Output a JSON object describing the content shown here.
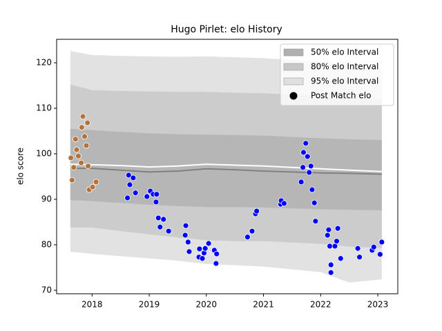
{
  "chart_data": {
    "type": "scatter",
    "title": "Hugo Pirlet: elo History",
    "y_label": "elo score",
    "xlim": [
      2017.38,
      2023.35
    ],
    "ylim": [
      69.24,
      125.15
    ],
    "xticks": [
      2018,
      2019,
      2020,
      2021,
      2022,
      2023
    ],
    "yticks": [
      70,
      80,
      90,
      100,
      110,
      120
    ],
    "legend": "upper right",
    "band_x": [
      2017.62,
      2018.0,
      2018.5,
      2019.0,
      2019.5,
      2020.0,
      2020.5,
      2021.0,
      2021.5,
      2022.0,
      2022.5,
      2023.07
    ],
    "bands": [
      {
        "name": "95% elo Interval",
        "color": "#e2e2e2",
        "legend_color": "#e0e0e0",
        "upper": [
          122.6,
          121.7,
          121.5,
          121.4,
          121.3,
          121.4,
          121.2,
          121.0,
          120.6,
          120.2,
          119.5,
          119.0
        ],
        "lower": [
          78.5,
          78.0,
          77.5,
          77.0,
          76.5,
          75.8,
          75.5,
          75.2,
          74.6,
          74.0,
          71.7,
          72.4
        ]
      },
      {
        "name": "80% elo Interval",
        "color": "#cccccc",
        "legend_color": "#c8c8c8",
        "upper": [
          115.2,
          114.0,
          113.8,
          113.7,
          113.6,
          113.6,
          113.4,
          113.3,
          113.0,
          112.7,
          112.3,
          112.0
        ],
        "lower": [
          83.8,
          83.8,
          83.0,
          82.3,
          81.6,
          81.0,
          80.8,
          80.8,
          80.5,
          80.2,
          79.6,
          79.3
        ]
      },
      {
        "name": "50% elo Interval",
        "color": "#b6b6b6",
        "legend_color": "#b0b0b0",
        "upper": [
          105.5,
          105.2,
          104.8,
          104.5,
          104.3,
          104.2,
          104.1,
          104.0,
          103.7,
          103.4,
          103.2,
          103.0
        ],
        "lower": [
          89.8,
          89.6,
          89.2,
          88.8,
          88.5,
          88.3,
          88.3,
          88.2,
          88.0,
          87.8,
          87.7,
          87.6
        ]
      }
    ],
    "lines": [
      {
        "color": "#808080",
        "values": [
          96.8,
          96.8,
          96.4,
          96.0,
          96.2,
          96.7,
          96.5,
          96.2,
          96.0,
          95.8,
          95.7,
          95.5
        ]
      },
      {
        "color": "#ffffff",
        "values": [
          97.7,
          97.6,
          97.4,
          97.1,
          97.3,
          97.7,
          97.5,
          97.3,
          97.0,
          96.7,
          96.4,
          96.1
        ]
      }
    ],
    "series": [
      {
        "name": "Post Match elo",
        "color": "#000000",
        "x": [
          2017.63,
          2017.65,
          2017.68,
          2017.71,
          2017.73,
          2017.76,
          2017.81,
          2017.82,
          2017.84,
          2017.87,
          2017.9,
          2017.92,
          2017.93,
          2017.95,
          2018.01,
          2018.07,
          2018.64,
          2018.66,
          2018.62,
          2018.72,
          2018.76,
          2018.96,
          2019.02,
          2019.07,
          2019.13,
          2019.12,
          2019.16,
          2019.19,
          2019.25,
          2019.34,
          2019.64,
          2019.63,
          2019.68,
          2019.7,
          2019.88,
          2019.87,
          2019.93,
          2019.96,
          2019.98,
          2020.04,
          2020.14,
          2020.18,
          2020.17,
          2020.72,
          2020.8,
          2020.86,
          2020.88,
          2021.3,
          2021.31,
          2021.36,
          2021.66,
          2021.69,
          2021.7,
          2021.74,
          2021.77,
          2021.8,
          2021.83,
          2021.85,
          2021.89,
          2021.91,
          2022.12,
          2022.14,
          2022.16,
          2022.18,
          2022.18,
          2022.25,
          2022.28,
          2022.3,
          2022.35,
          2022.65,
          2022.68,
          2022.9,
          2022.93,
          2023.04,
          2023.07
        ],
        "values": [
          99.1,
          94.2,
          97.0,
          103.2,
          100.9,
          99.5,
          98.0,
          105.8,
          108.2,
          103.8,
          101.8,
          106.8,
          97.3,
          92.1,
          92.7,
          93.8,
          95.3,
          93.2,
          90.3,
          94.7,
          91.4,
          90.6,
          91.8,
          91.1,
          91.1,
          89.4,
          85.9,
          83.9,
          85.6,
          83.0,
          84.2,
          82.1,
          80.6,
          78.5,
          79.1,
          77.3,
          77.0,
          78.2,
          79.2,
          80.3,
          78.8,
          78.0,
          75.9,
          81.7,
          83.0,
          86.8,
          87.4,
          88.9,
          89.7,
          89.1,
          93.8,
          97.0,
          100.3,
          102.3,
          99.4,
          95.9,
          97.3,
          92.1,
          89.2,
          85.2,
          82.1,
          83.3,
          79.7,
          75.6,
          73.9,
          79.7,
          80.8,
          83.6,
          77.0,
          79.2,
          77.3,
          78.8,
          79.5,
          77.9,
          80.6
        ],
        "colors": [
          "#b5733c",
          "#b5733c",
          "#b5733c",
          "#b5733c",
          "#b5733c",
          "#b5733c",
          "#b5733c",
          "#b5733c",
          "#b5733c",
          "#b5733c",
          "#b5733c",
          "#b5733c",
          "#b5733c",
          "#b5733c",
          "#b5733c",
          "#b5733c",
          "#0000ff",
          "#0000ff",
          "#0000ff",
          "#0000ff",
          "#0000ff",
          "#0000ff",
          "#0000ff",
          "#0000ff",
          "#0000ff",
          "#0000ff",
          "#0000ff",
          "#0000ff",
          "#0000ff",
          "#0000ff",
          "#0000ff",
          "#0000ff",
          "#0000ff",
          "#0000ff",
          "#0000ff",
          "#0000ff",
          "#0000ff",
          "#0000ff",
          "#0000ff",
          "#0000ff",
          "#0000ff",
          "#0000ff",
          "#0000ff",
          "#0000ff",
          "#0000ff",
          "#0000ff",
          "#0000ff",
          "#0000ff",
          "#0000ff",
          "#0000ff",
          "#0000ff",
          "#0000ff",
          "#0000ff",
          "#0000ff",
          "#0000ff",
          "#0000ff",
          "#0000ff",
          "#0000ff",
          "#0000ff",
          "#0000ff",
          "#0000ff",
          "#0000ff",
          "#0000ff",
          "#0000ff",
          "#0000ff",
          "#0000ff",
          "#0000ff",
          "#0000ff",
          "#0000ff",
          "#0000ff",
          "#0000ff",
          "#0000ff",
          "#0000ff",
          "#0000ff",
          "#0000ff"
        ]
      }
    ]
  }
}
